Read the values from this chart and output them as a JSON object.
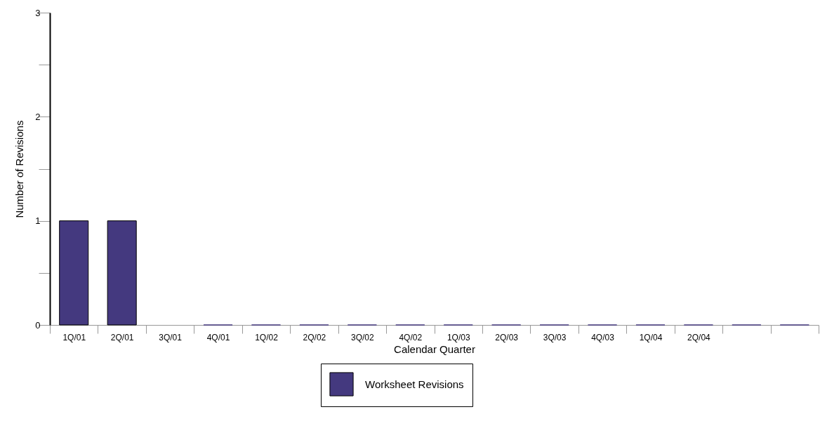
{
  "chart_data": {
    "type": "bar",
    "xlabel": "Calendar Quarter",
    "ylabel": "Number of Revisions",
    "categories": [
      "1Q/01",
      "2Q/01",
      "3Q/01",
      "4Q/01",
      "1Q/02",
      "2Q/02",
      "3Q/02",
      "4Q/02",
      "1Q/03",
      "2Q/03",
      "3Q/03",
      "4Q/03",
      "1Q/04",
      "2Q/04",
      null,
      null
    ],
    "series": [
      {
        "name": "Worksheet Revisions",
        "color": "#44397f",
        "values": [
          1,
          1,
          null,
          0,
          0,
          0,
          0,
          0,
          0,
          0,
          0,
          0,
          0,
          0,
          0,
          0
        ]
      }
    ],
    "ylim": [
      0,
      3
    ],
    "yticks": [
      0,
      {
        "value": 0.5,
        "label": null
      },
      1,
      {
        "value": 1.5,
        "label": null
      },
      2,
      {
        "value": 2.5,
        "label": null
      },
      3
    ],
    "legend": "bottom",
    "grid": false
  }
}
